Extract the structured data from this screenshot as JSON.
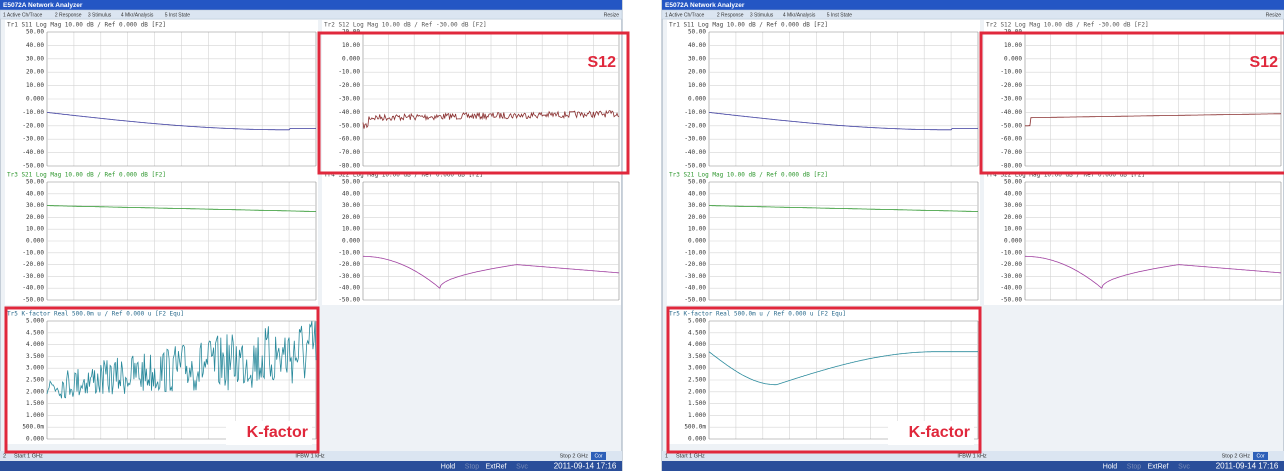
{
  "screens": [
    {
      "title": "E5072A Network Analyzer",
      "menu": [
        "1 Active Ch/Trace",
        "2 Response",
        "3 Stimulus",
        "4 Mkr/Analysis",
        "5 Inst State"
      ],
      "resize": "Resize",
      "panels": [
        {
          "header": "Tr1 S11 Log Mag 10.00 dB / Ref 0.000 dB [F2]",
          "yticks": [
            "50.00",
            "40.00",
            "30.00",
            "20.00",
            "10.00",
            "0.000",
            "-10.00",
            "-20.00",
            "-30.00",
            "-40.00",
            "-50.00"
          ]
        },
        {
          "header": "Tr2 S12 Log Mag 10.00 dB / Ref -30.00 dB [F2]",
          "yticks": [
            "20.00",
            "10.00",
            "0.000",
            "-10.00",
            "-20.00",
            "-30.00",
            "-40.00",
            "-50.00",
            "-60.00",
            "-70.00",
            "-80.00"
          ]
        },
        {
          "header": "Tr3 S21 Log Mag 10.00 dB / Ref 0.000 dB [F2]",
          "yticks": [
            "50.00",
            "40.00",
            "30.00",
            "20.00",
            "10.00",
            "0.000",
            "-10.00",
            "-20.00",
            "-30.00",
            "-40.00",
            "-50.00"
          ]
        },
        {
          "header": "Tr4 S22 Log Mag 10.00 dB / Ref 0.000 dB [F2]",
          "yticks": [
            "50.00",
            "40.00",
            "30.00",
            "20.00",
            "10.00",
            "0.000",
            "-10.00",
            "-20.00",
            "-30.00",
            "-40.00",
            "-50.00"
          ]
        },
        {
          "header": "Tr5 K-factor Real 500.0m u / Ref 0.000 u [F2 Equ]",
          "yticks": [
            "5.000",
            "4.500",
            "4.000",
            "3.500",
            "3.000",
            "2.500",
            "2.000",
            "1.500",
            "1.000",
            "500.0m",
            "0.000"
          ]
        }
      ],
      "status": {
        "channel": "2",
        "start": "Start 1 GHz",
        "ifbw": "IFBW 1 kHz",
        "stop": "Stop 2 GHz",
        "badge": "Cor"
      },
      "footer": [
        "Hold",
        "Stop",
        "ExtRef",
        "Svc",
        "2011-09-14 17:16"
      ],
      "callouts": [
        "S12",
        "K-factor"
      ]
    },
    {
      "title": "E5072A Network Analyzer",
      "menu": [
        "1 Active Ch/Trace",
        "2 Response",
        "3 Stimulus",
        "4 Mkr/Analysis",
        "5 Inst State"
      ],
      "resize": "Resize",
      "panels": [
        {
          "header": "Tr1 S11 Log Mag 10.00 dB / Ref 0.000 dB [F2]",
          "yticks": [
            "50.00",
            "40.00",
            "30.00",
            "20.00",
            "10.00",
            "0.000",
            "-10.00",
            "-20.00",
            "-30.00",
            "-40.00",
            "-50.00"
          ]
        },
        {
          "header": "Tr2 S12 Log Mag 10.00 dB / Ref -30.00 dB [F2]",
          "yticks": [
            "20.00",
            "10.00",
            "0.000",
            "-10.00",
            "-20.00",
            "-30.00",
            "-40.00",
            "-50.00",
            "-60.00",
            "-70.00",
            "-80.00"
          ]
        },
        {
          "header": "Tr3 S21 Log Mag 10.00 dB / Ref 0.000 dB [F2]",
          "yticks": [
            "50.00",
            "40.00",
            "30.00",
            "20.00",
            "10.00",
            "0.000",
            "-10.00",
            "-20.00",
            "-30.00",
            "-40.00",
            "-50.00"
          ]
        },
        {
          "header": "Tr4 S22 Log Mag 10.00 dB / Ref 0.000 dB [F2]",
          "yticks": [
            "50.00",
            "40.00",
            "30.00",
            "20.00",
            "10.00",
            "0.000",
            "-10.00",
            "-20.00",
            "-30.00",
            "-40.00",
            "-50.00"
          ]
        },
        {
          "header": "Tr5 K-factor Real 500.0m u / Ref 0.000 u [F2 Equ]",
          "yticks": [
            "5.000",
            "4.500",
            "4.000",
            "3.500",
            "3.000",
            "2.500",
            "2.000",
            "1.500",
            "1.000",
            "500.0m",
            "0.000"
          ]
        }
      ],
      "status": {
        "channel": "1",
        "start": "Start 1 GHz",
        "ifbw": "IFBW 1 kHz",
        "stop": "Stop 2 GHz",
        "badge": "Cor"
      },
      "footer": [
        "Hold",
        "Stop",
        "ExtRef",
        "Svc",
        "2011-09-14 17:16"
      ],
      "callouts": [
        "S12",
        "K-factor"
      ]
    }
  ]
}
